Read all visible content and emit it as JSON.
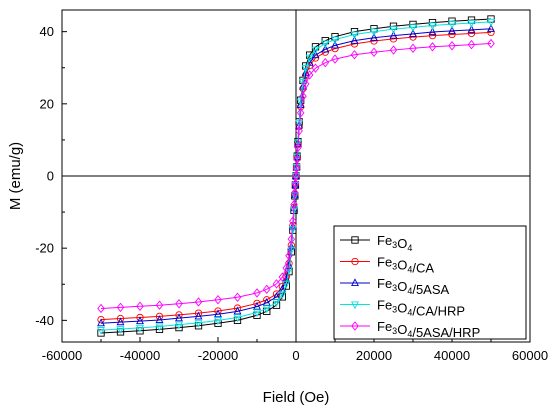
{
  "chart_data": {
    "type": "line",
    "xlabel": "Field (Oe)",
    "ylabel": "M (emu/g)",
    "xlim": [
      -60000,
      60000
    ],
    "ylim": [
      -46,
      46
    ],
    "x_ticks": [
      -60000,
      -40000,
      -20000,
      0,
      20000,
      40000,
      60000
    ],
    "y_ticks": [
      -40,
      -20,
      0,
      20,
      40
    ],
    "x_tick_labels": [
      "-60000",
      "-40000",
      "-20000",
      "0",
      "20000",
      "40000",
      "60000"
    ],
    "y_tick_labels": [
      "-40",
      "-20",
      "0",
      "20",
      "40"
    ],
    "grid": false,
    "zero_lines": true,
    "legend_position": "bottom-right",
    "x": [
      -50000,
      -45000,
      -40000,
      -35000,
      -30000,
      -25000,
      -20000,
      -15000,
      -10000,
      -7500,
      -5000,
      -3500,
      -2500,
      -1800,
      -1200,
      -800,
      -500,
      -300,
      -150,
      0,
      150,
      300,
      500,
      800,
      1200,
      1800,
      2500,
      3500,
      5000,
      7500,
      10000,
      15000,
      20000,
      25000,
      30000,
      35000,
      40000,
      45000,
      50000
    ],
    "series": [
      {
        "name_parts": [
          [
            "Fe",
            ""
          ],
          [
            "3",
            "sub"
          ],
          [
            "O",
            ""
          ],
          [
            "4",
            "sub"
          ]
        ],
        "color": "#000000",
        "marker": "square",
        "values": [
          -43.5,
          -43.2,
          -42.9,
          -42.5,
          -42.0,
          -41.5,
          -40.8,
          -40.0,
          -38.6,
          -37.5,
          -35.8,
          -33.5,
          -30.5,
          -26.5,
          -21.0,
          -15.0,
          -9.5,
          -5.5,
          -2.5,
          0.0,
          2.5,
          5.5,
          9.5,
          15.0,
          21.0,
          26.5,
          30.5,
          33.5,
          35.8,
          37.5,
          38.6,
          40.0,
          40.8,
          41.5,
          42.0,
          42.5,
          42.9,
          43.2,
          43.5
        ]
      },
      {
        "name_parts": [
          [
            "Fe",
            ""
          ],
          [
            "3",
            "sub"
          ],
          [
            "O",
            ""
          ],
          [
            "4",
            "sub"
          ],
          [
            "/CA",
            ""
          ]
        ],
        "color": "#ff0000",
        "marker": "circle",
        "values": [
          -39.8,
          -39.5,
          -39.2,
          -38.9,
          -38.5,
          -38.0,
          -37.4,
          -36.6,
          -35.3,
          -34.3,
          -32.7,
          -30.6,
          -27.9,
          -24.2,
          -19.2,
          -13.7,
          -8.7,
          -5.0,
          -2.3,
          0.0,
          2.3,
          5.0,
          8.7,
          13.7,
          19.2,
          24.2,
          27.9,
          30.6,
          32.7,
          34.3,
          35.3,
          36.6,
          37.4,
          38.0,
          38.5,
          38.9,
          39.2,
          39.5,
          39.8
        ]
      },
      {
        "name_parts": [
          [
            "Fe",
            ""
          ],
          [
            "3",
            "sub"
          ],
          [
            "O",
            ""
          ],
          [
            "4",
            "sub"
          ],
          [
            "/5ASA",
            ""
          ]
        ],
        "color": "#0000cc",
        "marker": "triangle",
        "values": [
          -40.8,
          -40.5,
          -40.2,
          -39.9,
          -39.4,
          -38.9,
          -38.3,
          -37.5,
          -36.2,
          -35.1,
          -33.5,
          -31.4,
          -28.6,
          -24.8,
          -19.7,
          -14.0,
          -8.9,
          -5.2,
          -2.4,
          0.0,
          2.4,
          5.2,
          8.9,
          14.0,
          19.7,
          24.8,
          28.6,
          31.4,
          33.5,
          35.1,
          36.2,
          37.5,
          38.3,
          38.9,
          39.4,
          39.9,
          40.2,
          40.5,
          40.8
        ]
      },
      {
        "name_parts": [
          [
            "Fe",
            ""
          ],
          [
            "3",
            "sub"
          ],
          [
            "O",
            ""
          ],
          [
            "4",
            "sub"
          ],
          [
            "/CA/HRP",
            ""
          ]
        ],
        "color": "#00e5e5",
        "marker": "triangle-down",
        "values": [
          -42.7,
          -42.4,
          -42.1,
          -41.7,
          -41.2,
          -40.7,
          -40.0,
          -39.2,
          -37.8,
          -36.7,
          -35.0,
          -32.8,
          -29.9,
          -26.0,
          -20.6,
          -14.7,
          -9.3,
          -5.4,
          -2.5,
          0.0,
          2.5,
          5.4,
          9.3,
          14.7,
          20.6,
          26.0,
          29.9,
          32.8,
          35.0,
          36.7,
          37.8,
          39.2,
          40.0,
          40.7,
          41.2,
          41.7,
          42.1,
          42.4,
          42.7
        ]
      },
      {
        "name_parts": [
          [
            "Fe",
            ""
          ],
          [
            "3",
            "sub"
          ],
          [
            "O",
            ""
          ],
          [
            "4",
            "sub"
          ],
          [
            "/5ASA/HRP",
            ""
          ]
        ],
        "color": "#ff00ff",
        "marker": "diamond",
        "values": [
          -36.7,
          -36.4,
          -36.1,
          -35.8,
          -35.4,
          -34.9,
          -34.3,
          -33.6,
          -32.4,
          -31.4,
          -29.9,
          -28.0,
          -25.5,
          -22.1,
          -17.5,
          -12.5,
          -7.9,
          -4.6,
          -2.1,
          0.0,
          2.1,
          4.6,
          7.9,
          12.5,
          17.5,
          22.1,
          25.5,
          28.0,
          29.9,
          31.4,
          32.4,
          33.6,
          34.3,
          34.9,
          35.4,
          35.8,
          36.1,
          36.4,
          36.7
        ]
      }
    ]
  }
}
